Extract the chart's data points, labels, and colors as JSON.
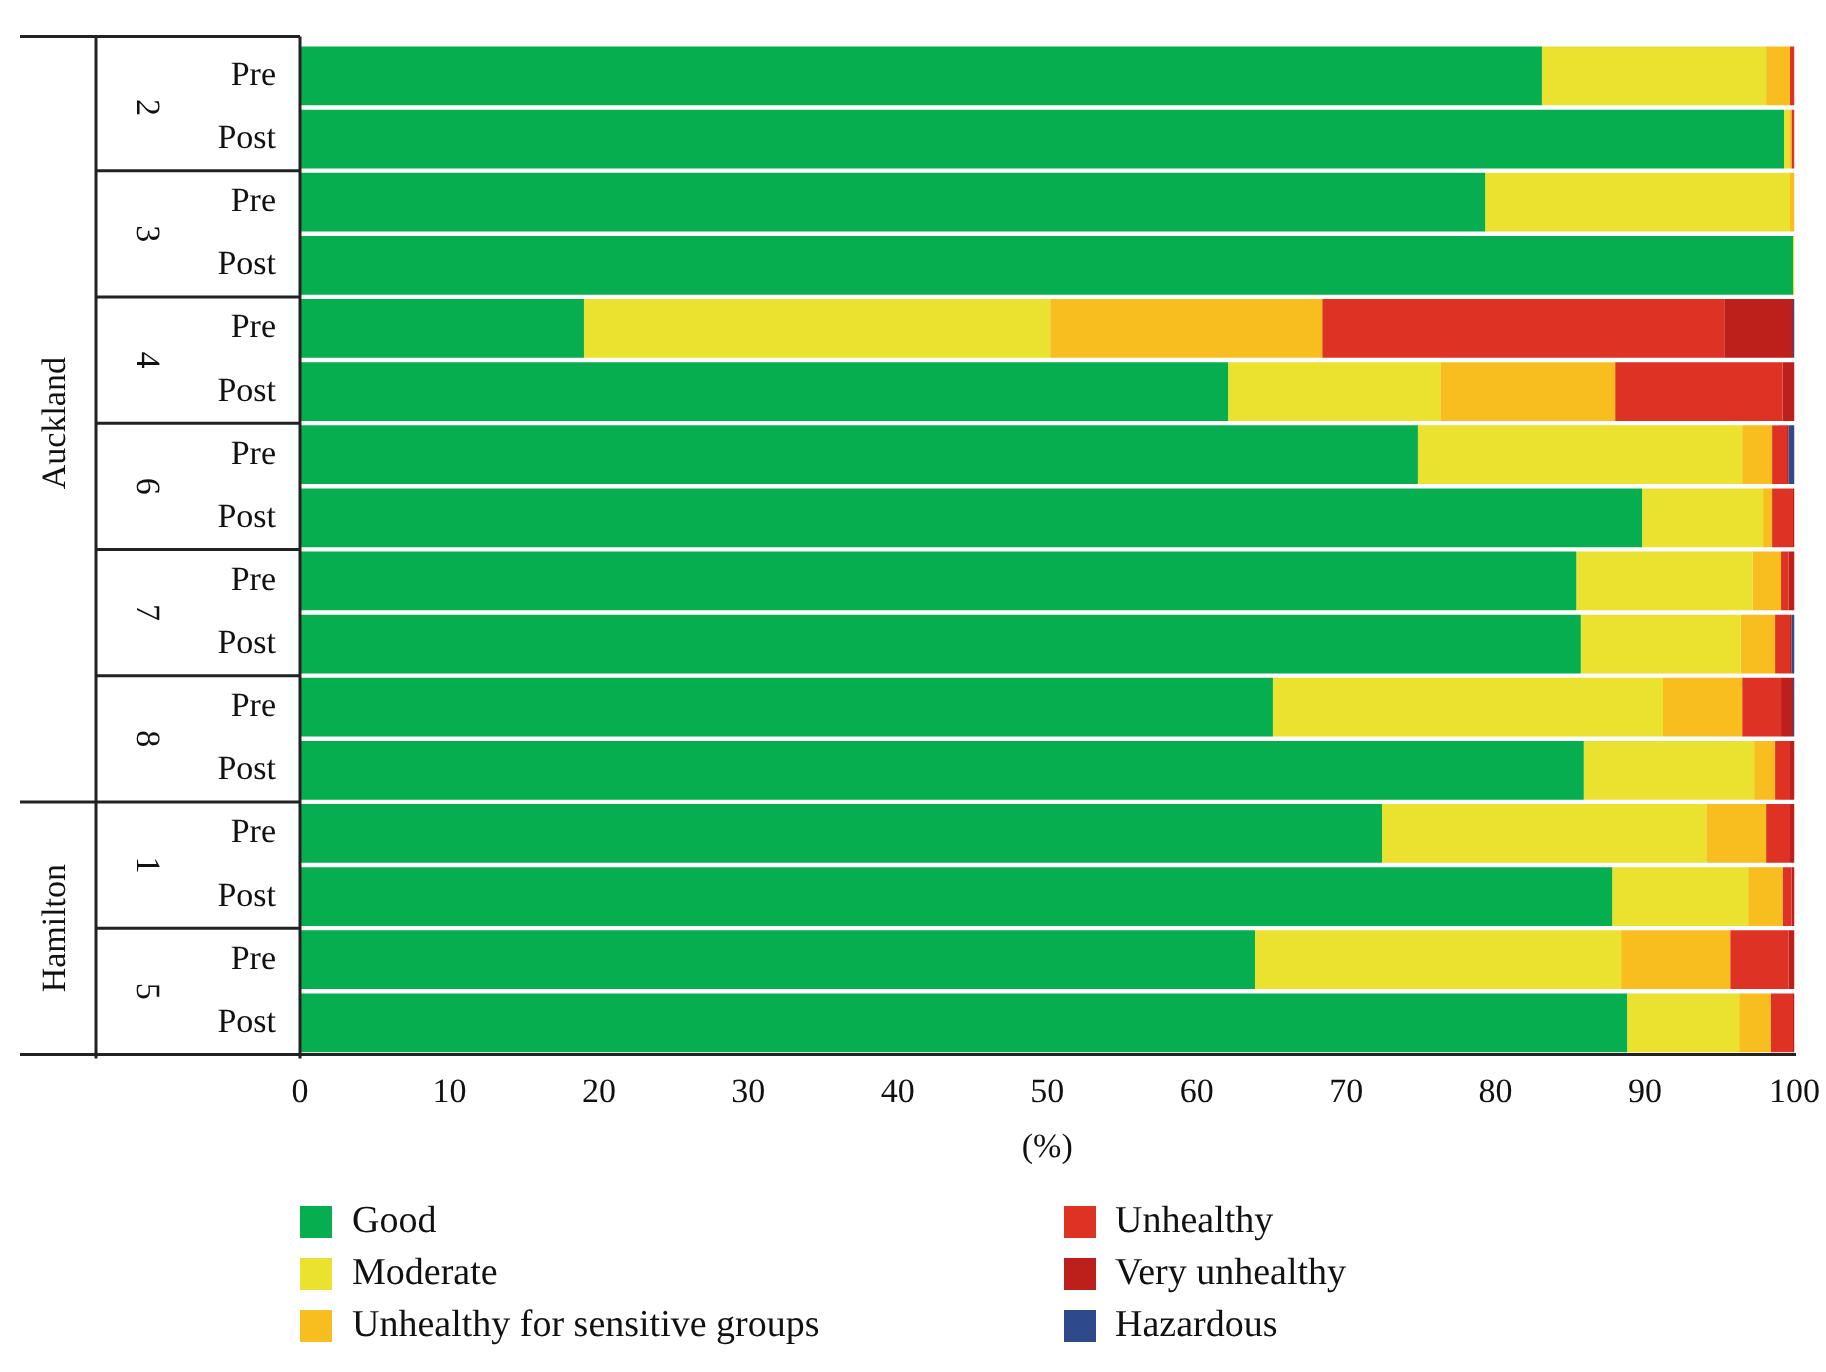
{
  "chart_data": {
    "type": "bar",
    "orientation": "horizontal",
    "stacked": true,
    "xlabel": "(%)",
    "categories": [
      "Pre",
      "Post",
      "Pre",
      "Post",
      "Pre",
      "Post",
      "Pre",
      "Post",
      "Pre",
      "Post",
      "Pre",
      "Post",
      "Pre",
      "Post",
      "Pre",
      "Post"
    ],
    "xlim": [
      0,
      100
    ],
    "xticks": [
      0,
      10,
      20,
      30,
      40,
      50,
      60,
      70,
      80,
      90,
      100
    ],
    "grid": false,
    "legend": "bottom",
    "annotations": [
      "2",
      "3",
      "4",
      "6",
      "7",
      "8",
      "1",
      "5",
      "Auckland",
      "Hamilton"
    ],
    "series": [
      {
        "name": "Good",
        "color": "#06ae50",
        "values": [
          83.1,
          99.3,
          79.3,
          99.9,
          19.0,
          62.1,
          74.8,
          89.8,
          85.4,
          85.7,
          65.1,
          85.9,
          72.4,
          87.8,
          63.9,
          88.8
        ]
      },
      {
        "name": "Moderate",
        "color": "#ebe230",
        "values": [
          15.0,
          0.4,
          20.4,
          0.1,
          31.2,
          14.2,
          21.7,
          8.1,
          11.8,
          10.7,
          26.1,
          11.4,
          21.7,
          9.1,
          24.5,
          7.5
        ]
      },
      {
        "name": "Unhealthy for sensitive groups",
        "color": "#f8bd1e",
        "values": [
          1.6,
          0.1,
          0.3,
          0,
          18.2,
          11.7,
          2.0,
          0.6,
          1.9,
          2.3,
          5.3,
          1.4,
          4.0,
          2.3,
          7.3,
          2.1
        ]
      },
      {
        "name": "Unhealthy",
        "color": "#de3224",
        "values": [
          0.3,
          0.2,
          0,
          0,
          26.9,
          11.2,
          1.0,
          1.4,
          0.5,
          1.0,
          2.6,
          1.0,
          1.6,
          0.6,
          3.9,
          1.5
        ]
      },
      {
        "name": "Very unhealthy",
        "color": "#bd1f1a",
        "values": [
          0,
          0,
          0,
          0,
          4.6,
          0.8,
          0.1,
          0.1,
          0.4,
          0.1,
          0.8,
          0.3,
          0.3,
          0.2,
          0.4,
          0.1
        ]
      },
      {
        "name": "Hazardous",
        "color": "#2e4a8a",
        "values": [
          0,
          0,
          0,
          0,
          0.1,
          0,
          0.4,
          0,
          0,
          0.2,
          0.1,
          0,
          0,
          0,
          0,
          0
        ]
      }
    ]
  }
}
